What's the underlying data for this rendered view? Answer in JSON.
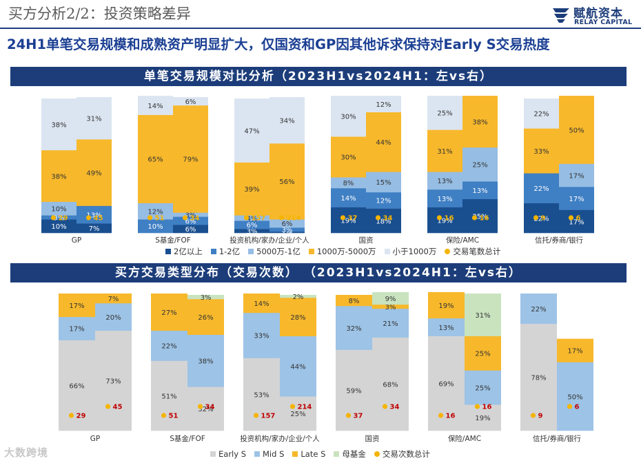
{
  "header": {
    "title": "买方分析2/2：投资策略差异",
    "logo_cn": "赋航资本",
    "logo_en": "RELAY CAPITAL",
    "headline": "24H1单笔交易规模和成熟资产明显扩大，仅国资和GP因其他诉求保持对Early S交易热度"
  },
  "watermark": "大数跨境",
  "chart_data": [
    {
      "type": "bar",
      "stacked": true,
      "percent": true,
      "title": "单笔交易规模对比分析（2023H1vs2024H1：左vs右）",
      "categories": [
        "GP",
        "S基金/FOF",
        "投资机构/家办/企业/个人",
        "国资",
        "保险/AMC",
        "信托/券商/银行"
      ],
      "sub_periods": [
        "2023H1",
        "2024H1"
      ],
      "series": [
        {
          "name": "2亿以上",
          "color": "#1a4f8f",
          "values": [
            [
              10,
              7
            ],
            [
              0,
              6
            ],
            [
              3,
              1
            ],
            [
              19,
              18
            ],
            [
              19,
              25
            ],
            [
              22,
              17
            ]
          ],
          "labels": [
            [
              "10%",
              "7%"
            ],
            [
              "",
              "6%"
            ],
            [
              "3%",
              "1%"
            ],
            [
              "19%",
              "18%"
            ],
            [
              "19%",
              "25%"
            ],
            [
              "22%",
              "17%"
            ]
          ]
        },
        {
          "name": "1-2亿",
          "color": "#3f7fc4",
          "values": [
            [
              3,
              13
            ],
            [
              10,
              6
            ],
            [
              6,
              3
            ],
            [
              14,
              12
            ],
            [
              13,
              13
            ],
            [
              22,
              17
            ]
          ],
          "labels": [
            [
              "3%",
              "13%"
            ],
            [
              "10%",
              "6%"
            ],
            [
              "6%",
              "3%"
            ],
            [
              "14%",
              "12%"
            ],
            [
              "13%",
              "13%"
            ],
            [
              "22%",
              "17%"
            ]
          ]
        },
        {
          "name": "5000万-1亿",
          "color": "#96bde3",
          "values": [
            [
              10,
              0
            ],
            [
              12,
              3
            ],
            [
              4,
              6
            ],
            [
              8,
              15
            ],
            [
              13,
              25
            ],
            [
              0,
              17
            ]
          ],
          "labels": [
            [
              "10%",
              ""
            ],
            [
              "12%",
              "3%"
            ],
            [
              "4%",
              "6%"
            ],
            [
              "8%",
              "15%"
            ],
            [
              "13%",
              "25%"
            ],
            [
              "",
              "17%"
            ]
          ]
        },
        {
          "name": "1000万-5000万",
          "color": "#f7b82b",
          "values": [
            [
              38,
              49
            ],
            [
              65,
              79
            ],
            [
              39,
              56
            ],
            [
              30,
              44
            ],
            [
              31,
              38
            ],
            [
              33,
              50
            ]
          ],
          "labels": [
            [
              "38%",
              "49%"
            ],
            [
              "65%",
              "79%"
            ],
            [
              "39%",
              "56%"
            ],
            [
              "30%",
              "44%"
            ],
            [
              "31%",
              "38%"
            ],
            [
              "33%",
              "50%"
            ]
          ]
        },
        {
          "name": "小于1000万",
          "color": "#dbe5f1",
          "values": [
            [
              38,
              31
            ],
            [
              14,
              6
            ],
            [
              47,
              34
            ],
            [
              30,
              12
            ],
            [
              25,
              0
            ],
            [
              22,
              0
            ]
          ],
          "labels": [
            [
              "38%",
              "31%"
            ],
            [
              "14%",
              "6%"
            ],
            [
              "47%",
              "34%"
            ],
            [
              "30%",
              "12%"
            ],
            [
              "25%",
              ""
            ],
            [
              "22%",
              ""
            ]
          ]
        }
      ],
      "dot_series": {
        "name": "交易笔数总计",
        "color": "#f5b400",
        "label_color": "#f5b400",
        "values": [
          [
            29,
            45
          ],
          [
            51,
            34
          ],
          [
            157,
            214
          ],
          [
            37,
            34
          ],
          [
            16,
            16
          ],
          [
            9,
            6
          ]
        ]
      }
    },
    {
      "type": "bar",
      "stacked": true,
      "percent": true,
      "title": "买方交易类型分布（交易次数）  （2023H1vs2024H1：左vs右）",
      "categories": [
        "GP",
        "S基金/FOF",
        "投资机构/家办/企业/个人",
        "国资",
        "保险/AMC",
        "信托/券商/银行"
      ],
      "sub_periods": [
        "2023H1",
        "2024H1"
      ],
      "series": [
        {
          "name": "Early S",
          "color": "#d4d4d4",
          "values": [
            [
              66,
              73
            ],
            [
              51,
              32
            ],
            [
              53,
              25
            ],
            [
              59,
              68
            ],
            [
              69,
              19
            ],
            [
              78,
              0
            ]
          ],
          "labels": [
            [
              "66%",
              "73%"
            ],
            [
              "51%",
              "32%"
            ],
            [
              "53%",
              "25%"
            ],
            [
              "59%",
              "68%"
            ],
            [
              "69%",
              "19%"
            ],
            [
              "78%",
              ""
            ]
          ]
        },
        {
          "name": "Mid S",
          "color": "#9dc3e6",
          "values": [
            [
              17,
              20
            ],
            [
              22,
              38
            ],
            [
              33,
              44
            ],
            [
              32,
              21
            ],
            [
              13,
              25
            ],
            [
              22,
              50
            ]
          ],
          "labels": [
            [
              "17%",
              "20%"
            ],
            [
              "22%",
              "38%"
            ],
            [
              "33%",
              "44%"
            ],
            [
              "32%",
              "21%"
            ],
            [
              "13%",
              "25%"
            ],
            [
              "22%",
              "50%"
            ]
          ]
        },
        {
          "name": "Late S",
          "color": "#f7b82b",
          "values": [
            [
              17,
              7
            ],
            [
              27,
              26
            ],
            [
              14,
              28
            ],
            [
              8,
              3
            ],
            [
              19,
              25
            ],
            [
              0,
              17
            ]
          ],
          "labels": [
            [
              "17%",
              "7%"
            ],
            [
              "27%",
              "26%"
            ],
            [
              "14%",
              "28%"
            ],
            [
              "8%",
              "3%"
            ],
            [
              "19%",
              "25%"
            ],
            [
              "",
              "17%"
            ]
          ]
        },
        {
          "name": "母基金",
          "color": "#c9e3bf",
          "values": [
            [
              0,
              0
            ],
            [
              0,
              3
            ],
            [
              0,
              2
            ],
            [
              0,
              9
            ],
            [
              0,
              31
            ],
            [
              0,
              0
            ]
          ],
          "labels": [
            [
              "",
              ""
            ],
            [
              "",
              "3%"
            ],
            [
              "",
              "2%"
            ],
            [
              "",
              "9%"
            ],
            [
              "",
              "31%"
            ],
            [
              "",
              ""
            ]
          ]
        }
      ],
      "dot_series": {
        "name": "交易次数总计",
        "color": "#f5b400",
        "label_color": "#c00000",
        "values": [
          [
            29,
            45
          ],
          [
            51,
            34
          ],
          [
            157,
            214
          ],
          [
            37,
            34
          ],
          [
            16,
            16
          ],
          [
            9,
            6
          ]
        ]
      }
    }
  ]
}
